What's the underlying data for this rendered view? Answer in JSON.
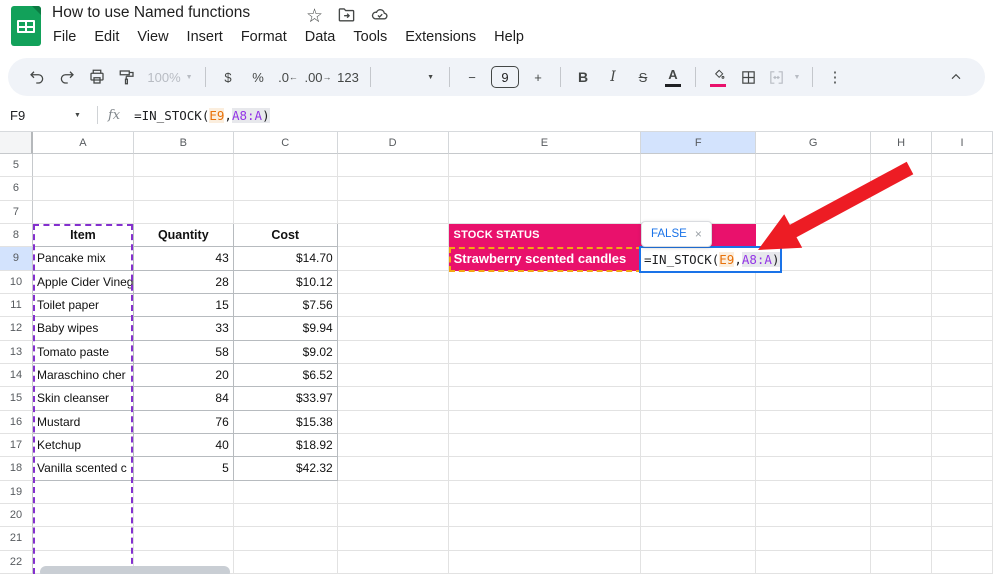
{
  "titlebar": {
    "title": "How to use Named functions",
    "menus": [
      "File",
      "Edit",
      "View",
      "Insert",
      "Format",
      "Data",
      "Tools",
      "Extensions",
      "Help"
    ]
  },
  "toolbar": {
    "zoom": "100%",
    "currency": "$",
    "percent": "%",
    "dec_decrease": ".0",
    "dec_decrease_arrow": "←",
    "dec_increase": ".00",
    "dec_increase_arrow": "→",
    "more_formats": "123",
    "minus": "−",
    "font_size": "9",
    "plus": "+",
    "bold": "B",
    "italic": "I",
    "strikethrough": "S",
    "text_color": "A",
    "more": "⋮"
  },
  "formula_bar": {
    "name_box": "F9",
    "fx": "fx"
  },
  "formula": {
    "prefix": "=IN_STOCK(",
    "arg1": "E9",
    "separator": ",",
    "arg2": "A8:A",
    "suffix": ")"
  },
  "tooltip": {
    "value": "FALSE",
    "close": "×"
  },
  "grid": {
    "columns": [
      "A",
      "B",
      "C",
      "D",
      "E",
      "F",
      "G",
      "H",
      "I"
    ],
    "selected_column": "F",
    "selected_row": 9,
    "row_start": 5,
    "row_end": 22
  },
  "table": {
    "headers": [
      "Item",
      "Quantity",
      "Cost"
    ],
    "items": [
      {
        "name": "Pancake mix",
        "qty": "43",
        "cost": "$14.70"
      },
      {
        "name": "Apple Cider Vineg",
        "qty": "28",
        "cost": "$10.12"
      },
      {
        "name": "Toilet paper",
        "qty": "15",
        "cost": "$7.56"
      },
      {
        "name": "Baby wipes",
        "qty": "33",
        "cost": "$9.94"
      },
      {
        "name": "Tomato paste",
        "qty": "58",
        "cost": "$9.02"
      },
      {
        "name": "Maraschino cher",
        "qty": "20",
        "cost": "$6.52"
      },
      {
        "name": "Skin cleanser",
        "qty": "84",
        "cost": "$33.97"
      },
      {
        "name": "Mustard",
        "qty": "76",
        "cost": "$15.38"
      },
      {
        "name": "Ketchup",
        "qty": "40",
        "cost": "$18.92"
      },
      {
        "name": "Vanilla scented c",
        "qty": "5",
        "cost": "$42.32"
      }
    ]
  },
  "stock": {
    "label": "STOCK STATUS",
    "item": "Strawberry scented candles"
  },
  "colors": {
    "pink": "#e9116c",
    "selection_blue": "#1a73e8",
    "range_purple": "#9334e6",
    "ref_orange": "#e8710a",
    "dashed_purple": "#8430ce",
    "dashed_orange": "#f3a713",
    "header_highlight": "#d3e3fd"
  }
}
